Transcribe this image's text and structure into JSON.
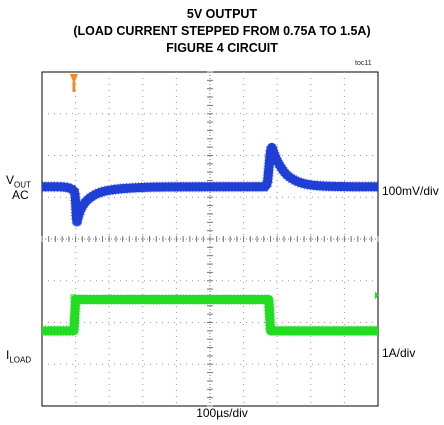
{
  "title_lines": [
    "5V OUTPUT",
    "(LOAD CURRENT STEPPED FROM 0.75A TO 1.5A)",
    "FIGURE 4 CIRCUIT"
  ],
  "code": "toc11",
  "labels": {
    "vout_main": "V",
    "vout_sub": "OUT",
    "ac": "AC",
    "iload_main": "I",
    "iload_sub": "LOAD",
    "ch1_scale": "100mV/div",
    "ch2_scale": "1A/div",
    "x_scale": "100µs/div"
  },
  "colors": {
    "vout_trace": "#1f3fd6",
    "iload_trace": "#22dd22",
    "grid": "#9a9a9a",
    "marker": "#f08a24"
  },
  "chart_data": {
    "type": "line",
    "x_divisions": 10,
    "y_divisions": 8,
    "x_unit": "µs",
    "x_per_div": 100,
    "grid": true,
    "series": [
      {
        "channel": "VOUT",
        "coupling": "AC",
        "unit": "mV",
        "per_div": 100,
        "baseline_div": 1.25,
        "points_div": [
          [
            0,
            1.25
          ],
          [
            0.95,
            1.25
          ],
          [
            1.0,
            0.95
          ],
          [
            1.03,
            0.35
          ],
          [
            1.08,
            0.55
          ],
          [
            1.2,
            0.8
          ],
          [
            1.4,
            0.98
          ],
          [
            1.7,
            1.12
          ],
          [
            2.2,
            1.2
          ],
          [
            3.0,
            1.24
          ],
          [
            4.0,
            1.25
          ],
          [
            6.5,
            1.25
          ],
          [
            6.7,
            1.25
          ],
          [
            6.74,
            1.6
          ],
          [
            6.82,
            2.28
          ],
          [
            6.9,
            2.05
          ],
          [
            7.05,
            1.78
          ],
          [
            7.3,
            1.5
          ],
          [
            7.7,
            1.33
          ],
          [
            8.2,
            1.27
          ],
          [
            9.0,
            1.25
          ],
          [
            10,
            1.25
          ]
        ]
      },
      {
        "channel": "ILOAD",
        "unit": "A",
        "per_div": 1,
        "points_div": [
          [
            0,
            -2.2
          ],
          [
            0.95,
            -2.2
          ],
          [
            1.0,
            -1.45
          ],
          [
            6.75,
            -1.45
          ],
          [
            6.8,
            -2.2
          ],
          [
            10,
            -2.2
          ]
        ],
        "levels_A": [
          0.75,
          1.5
        ]
      }
    ]
  }
}
